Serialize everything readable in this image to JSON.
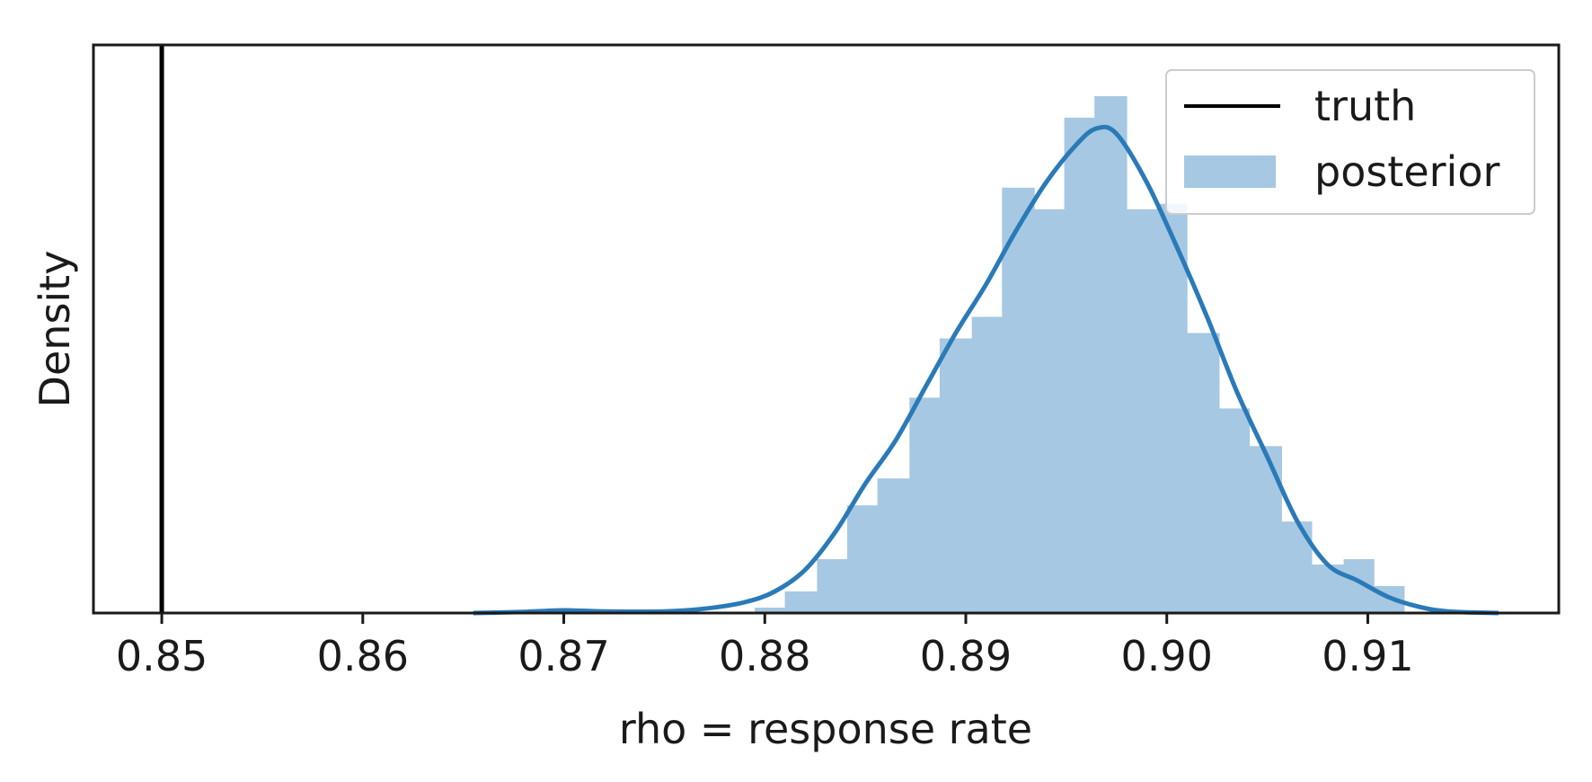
{
  "chart_data": {
    "type": "histogram",
    "xlabel": "rho = response rate",
    "ylabel": "Density",
    "xlim": [
      0.8466,
      0.9195
    ],
    "xticks": [
      0.85,
      0.86,
      0.87,
      0.88,
      0.89,
      0.9,
      0.91
    ],
    "xtick_labels": [
      "0.85",
      "0.86",
      "0.87",
      "0.88",
      "0.89",
      "0.90",
      "0.91"
    ],
    "y_ticks_visible": false,
    "grid": false,
    "legend": {
      "position": "upper right",
      "entries": [
        {
          "label": "truth",
          "kind": "line",
          "color": "#000000"
        },
        {
          "label": "posterior",
          "kind": "patch",
          "color": "#a6c8e2"
        }
      ]
    },
    "truth": {
      "x": 0.85,
      "color": "#000000"
    },
    "histogram": {
      "color": "#a6c8e2",
      "bin_edges": [
        0.8795,
        0.881,
        0.8826,
        0.8841,
        0.8856,
        0.8872,
        0.8887,
        0.8903,
        0.8918,
        0.8934,
        0.8949,
        0.8964,
        0.898,
        0.8995,
        0.901,
        0.9026,
        0.9041,
        0.9057,
        0.9072,
        0.9088,
        0.9103,
        0.9118
      ],
      "heights": [
        0.01,
        0.04,
        0.1,
        0.2,
        0.25,
        0.4,
        0.51,
        0.55,
        0.79,
        0.75,
        0.92,
        0.96,
        0.75,
        0.76,
        0.52,
        0.38,
        0.31,
        0.17,
        0.09,
        0.1,
        0.05
      ]
    },
    "kde": {
      "color": "#2a7ab8",
      "x": [
        0.8655,
        0.868,
        0.87,
        0.872,
        0.875,
        0.877,
        0.879,
        0.8805,
        0.882,
        0.8835,
        0.885,
        0.8865,
        0.888,
        0.8895,
        0.891,
        0.8925,
        0.894,
        0.8955,
        0.8965,
        0.8975,
        0.899,
        0.9005,
        0.902,
        0.9035,
        0.905,
        0.9065,
        0.908,
        0.9095,
        0.911,
        0.9125,
        0.914,
        0.9165
      ],
      "y": [
        0.0,
        0.002,
        0.005,
        0.003,
        0.003,
        0.008,
        0.02,
        0.04,
        0.08,
        0.15,
        0.24,
        0.32,
        0.42,
        0.52,
        0.61,
        0.71,
        0.8,
        0.87,
        0.9,
        0.89,
        0.8,
        0.68,
        0.55,
        0.41,
        0.29,
        0.17,
        0.09,
        0.06,
        0.03,
        0.012,
        0.003,
        0.0
      ]
    }
  }
}
